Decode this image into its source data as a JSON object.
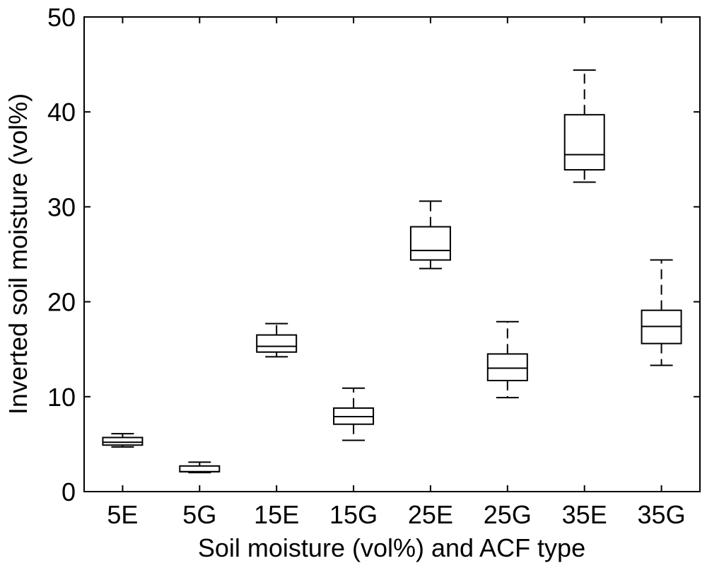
{
  "chart_data": {
    "type": "boxplot",
    "xlabel": "Soil moisture (vol%) and ACF type",
    "ylabel": "Inverted soil moisture (vol%)",
    "ylim": [
      0,
      50
    ],
    "yticks": [
      0,
      10,
      20,
      30,
      40,
      50
    ],
    "grid": false,
    "categories": [
      "5E",
      "5G",
      "15E",
      "15G",
      "25E",
      "25G",
      "35E",
      "35G"
    ],
    "boxes": [
      {
        "category": "5E",
        "min": 4.7,
        "q1": 4.9,
        "median": 5.2,
        "q3": 5.7,
        "max": 6.1
      },
      {
        "category": "5G",
        "min": 2.0,
        "q1": 2.1,
        "median": 2.1,
        "q3": 2.7,
        "max": 3.1
      },
      {
        "category": "15E",
        "min": 14.2,
        "q1": 14.7,
        "median": 15.3,
        "q3": 16.5,
        "max": 17.7
      },
      {
        "category": "15G",
        "min": 5.4,
        "q1": 7.1,
        "median": 7.9,
        "q3": 8.8,
        "max": 10.9
      },
      {
        "category": "25E",
        "min": 23.5,
        "q1": 24.4,
        "median": 25.4,
        "q3": 27.9,
        "max": 30.6
      },
      {
        "category": "25G",
        "min": 9.9,
        "q1": 11.7,
        "median": 13.0,
        "q3": 14.5,
        "max": 17.9
      },
      {
        "category": "35E",
        "min": 32.6,
        "q1": 33.9,
        "median": 35.5,
        "q3": 39.7,
        "max": 44.4
      },
      {
        "category": "35G",
        "min": 13.3,
        "q1": 15.6,
        "median": 17.4,
        "q3": 19.1,
        "max": 24.4
      }
    ]
  }
}
